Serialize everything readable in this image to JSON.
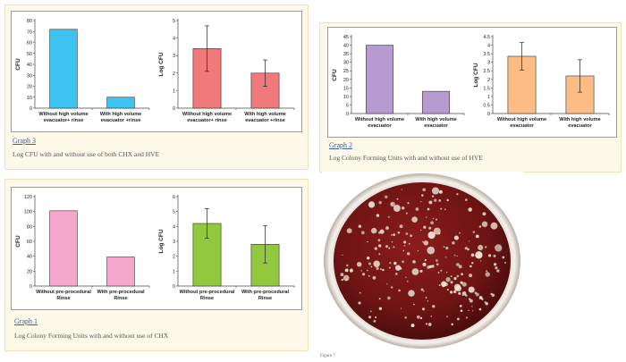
{
  "graphs": {
    "graph3": {
      "link": "Graph 3",
      "caption": "Log CFU with and without use of both CHX and HVE",
      "charts": [
        {
          "type": "bar",
          "ylabel": "CFU",
          "ylim": [
            0,
            80
          ],
          "yticks": [
            0,
            10,
            20,
            30,
            40,
            50,
            60,
            70,
            80
          ],
          "categories": [
            [
              "Without high volume",
              "evacuator+ rinse"
            ],
            [
              "With high volume",
              "evacuator +rinse"
            ]
          ],
          "values": [
            72,
            10
          ],
          "errors": null,
          "color": "#3cc3f0"
        },
        {
          "type": "bar",
          "ylabel": "Log CFU",
          "ylim": [
            0,
            5
          ],
          "yticks": [
            0,
            1,
            2,
            3,
            4,
            5
          ],
          "categories": [
            [
              "Without high volume",
              "evacuator+ rinse"
            ],
            [
              "With high volume",
              "evacuator +rinse"
            ]
          ],
          "values": [
            3.4,
            2.0
          ],
          "errors": [
            1.3,
            0.75
          ],
          "color": "#f0797b"
        }
      ]
    },
    "graph2": {
      "link": "Graph 2",
      "caption": "Log Colony Forming Units with and without use of HVE",
      "charts": [
        {
          "type": "bar",
          "ylabel": "CFU",
          "ylim": [
            0,
            45
          ],
          "yticks": [
            0,
            5,
            10,
            15,
            20,
            25,
            30,
            35,
            40,
            45
          ],
          "categories": [
            [
              "Without high volume",
              "evacuator"
            ],
            [
              "With high volume",
              "evacuator"
            ]
          ],
          "values": [
            40,
            13
          ],
          "errors": null,
          "color": "#b79ad0"
        },
        {
          "type": "bar",
          "ylabel": "Log CFU",
          "ylim": [
            0,
            4.5
          ],
          "yticks": [
            0,
            0.5,
            1,
            1.5,
            2,
            2.5,
            3,
            3.5,
            4,
            4.5
          ],
          "categories": [
            [
              "Without high volume",
              "evacuator"
            ],
            [
              "With high volume",
              "evacuator"
            ]
          ],
          "values": [
            3.35,
            2.2
          ],
          "errors": [
            0.8,
            0.95
          ],
          "color": "#fbbd84"
        }
      ]
    },
    "graph1": {
      "link": "Graph 1",
      "caption": "Log Colony Forming Units with and without use of CHX",
      "charts": [
        {
          "type": "bar",
          "ylabel": "CFU",
          "ylim": [
            0,
            120
          ],
          "yticks": [
            0,
            20,
            40,
            60,
            80,
            100,
            120
          ],
          "categories": [
            [
              "Without pre-procedural",
              "Rinse"
            ],
            [
              "With pre-procedural",
              "Rinse"
            ]
          ],
          "values": [
            101,
            39
          ],
          "errors": null,
          "color": "#f4a8cb"
        },
        {
          "type": "bar",
          "ylabel": "Log CFU",
          "ylim": [
            0,
            6
          ],
          "yticks": [
            0,
            1,
            2,
            3,
            4,
            5,
            6
          ],
          "categories": [
            [
              "Without pre-procedural",
              "Rinse"
            ],
            [
              "With pre-procedural",
              "Rinse"
            ]
          ],
          "values": [
            4.2,
            2.8
          ],
          "errors": [
            1.0,
            1.25
          ],
          "color": "#92c83e"
        }
      ]
    }
  },
  "photo": {
    "label": "Figure 7",
    "dish_color": "#7a1717"
  },
  "chart_data": [
    {
      "type": "bar",
      "ylabel": "CFU",
      "categories": [
        "Without high volume evacuator+ rinse",
        "With high volume evacuator +rinse"
      ],
      "values": [
        72,
        10
      ],
      "ylim": [
        0,
        80
      ]
    },
    {
      "type": "bar",
      "ylabel": "Log CFU",
      "categories": [
        "Without high volume evacuator+ rinse",
        "With high volume evacuator +rinse"
      ],
      "values": [
        3.4,
        2.0
      ],
      "errors": [
        1.3,
        0.75
      ],
      "ylim": [
        0,
        5
      ]
    },
    {
      "type": "bar",
      "ylabel": "CFU",
      "categories": [
        "Without high volume evacuator",
        "With high volume evacuator"
      ],
      "values": [
        40,
        13
      ],
      "ylim": [
        0,
        45
      ]
    },
    {
      "type": "bar",
      "ylabel": "Log CFU",
      "categories": [
        "Without high volume evacuator",
        "With high volume evacuator"
      ],
      "values": [
        3.35,
        2.2
      ],
      "errors": [
        0.8,
        0.95
      ],
      "ylim": [
        0,
        4.5
      ]
    },
    {
      "type": "bar",
      "ylabel": "CFU",
      "categories": [
        "Without pre-procedural Rinse",
        "With pre-procedural Rinse"
      ],
      "values": [
        101,
        39
      ],
      "ylim": [
        0,
        120
      ]
    },
    {
      "type": "bar",
      "ylabel": "Log CFU",
      "categories": [
        "Without pre-procedural Rinse",
        "With pre-procedural Rinse"
      ],
      "values": [
        4.2,
        2.8
      ],
      "errors": [
        1.0,
        1.25
      ],
      "ylim": [
        0,
        6
      ]
    }
  ]
}
